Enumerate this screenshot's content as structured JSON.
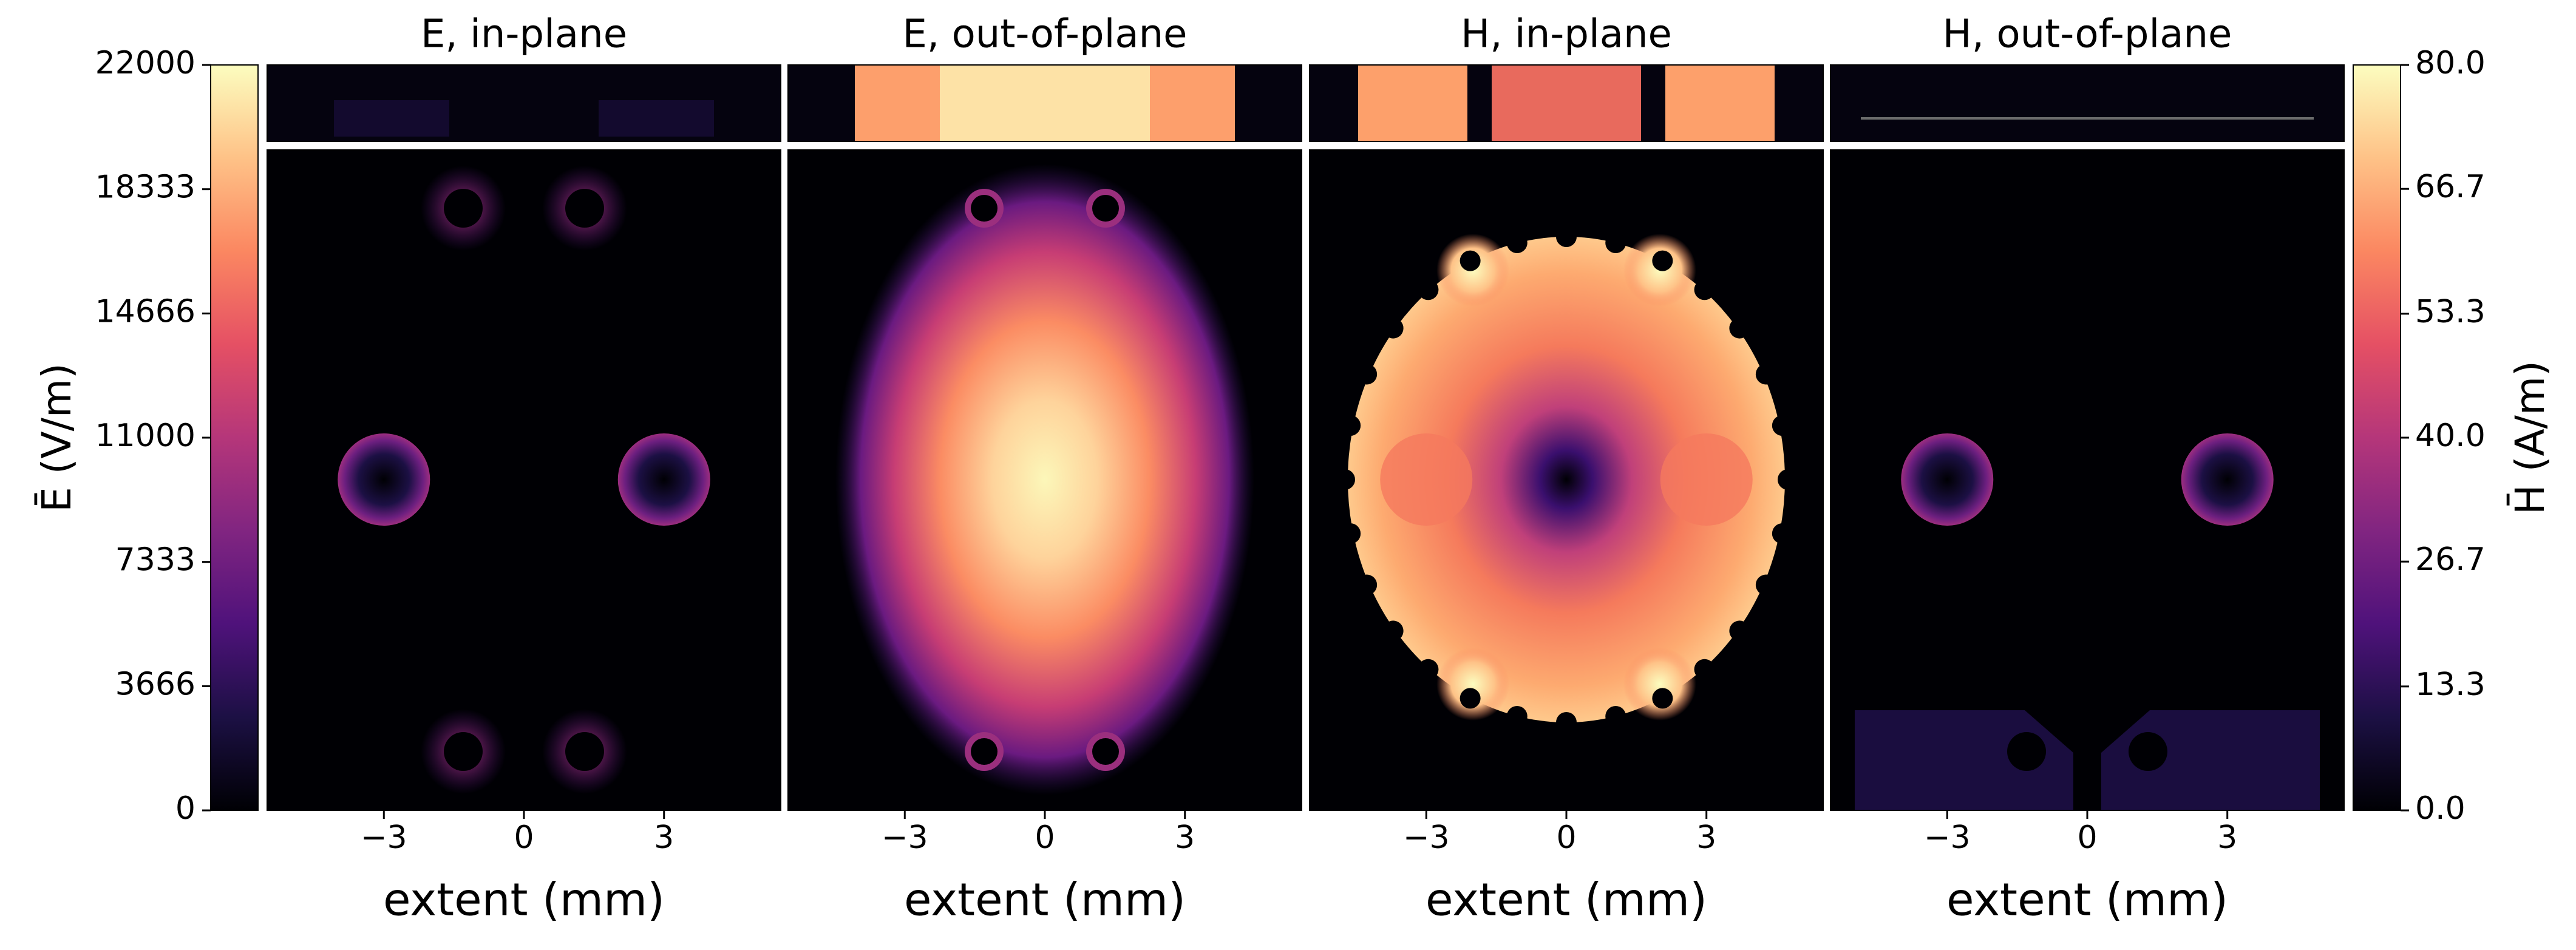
{
  "chart_data": {
    "type": "heatmap",
    "colormap": "magma",
    "panels": [
      {
        "title": "E, in-plane",
        "field": "E"
      },
      {
        "title": "E, out-of-plane",
        "field": "E"
      },
      {
        "title": "H, in-plane",
        "field": "H"
      },
      {
        "title": "H, out-of-plane",
        "field": "H"
      }
    ],
    "xlabel": "extent (mm)",
    "x_ticks": [
      "−3",
      "0",
      "3"
    ],
    "x_tick_values": [
      -3,
      0,
      3
    ],
    "xlim": [
      -5.5,
      5.5
    ],
    "colorbar_left": {
      "label": "Ē (V/m)",
      "ticks": [
        "0",
        "3666",
        "7333",
        "11000",
        "14666",
        "18333",
        "22000"
      ],
      "range": [
        0,
        22000
      ]
    },
    "colorbar_right": {
      "label": "H̄ (A/m)",
      "ticks": [
        "0.0",
        "13.3",
        "26.7",
        "40.0",
        "53.3",
        "66.7",
        "80.0"
      ],
      "range": [
        0,
        80
      ]
    },
    "colors": {
      "background": "#000004",
      "magma_stops": [
        "#000004",
        "#1c1044",
        "#4f127b",
        "#812581",
        "#b5367a",
        "#e55064",
        "#fb8761",
        "#fec287",
        "#fcfdbf"
      ]
    }
  }
}
